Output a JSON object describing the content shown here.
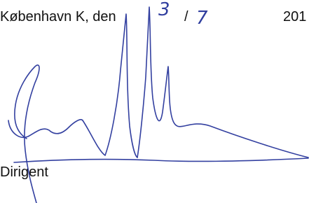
{
  "header": {
    "place_date": "København K, den",
    "day": "3",
    "separator": "/",
    "month": "7",
    "year": "201"
  },
  "footer": {
    "role": "Dirigent"
  }
}
